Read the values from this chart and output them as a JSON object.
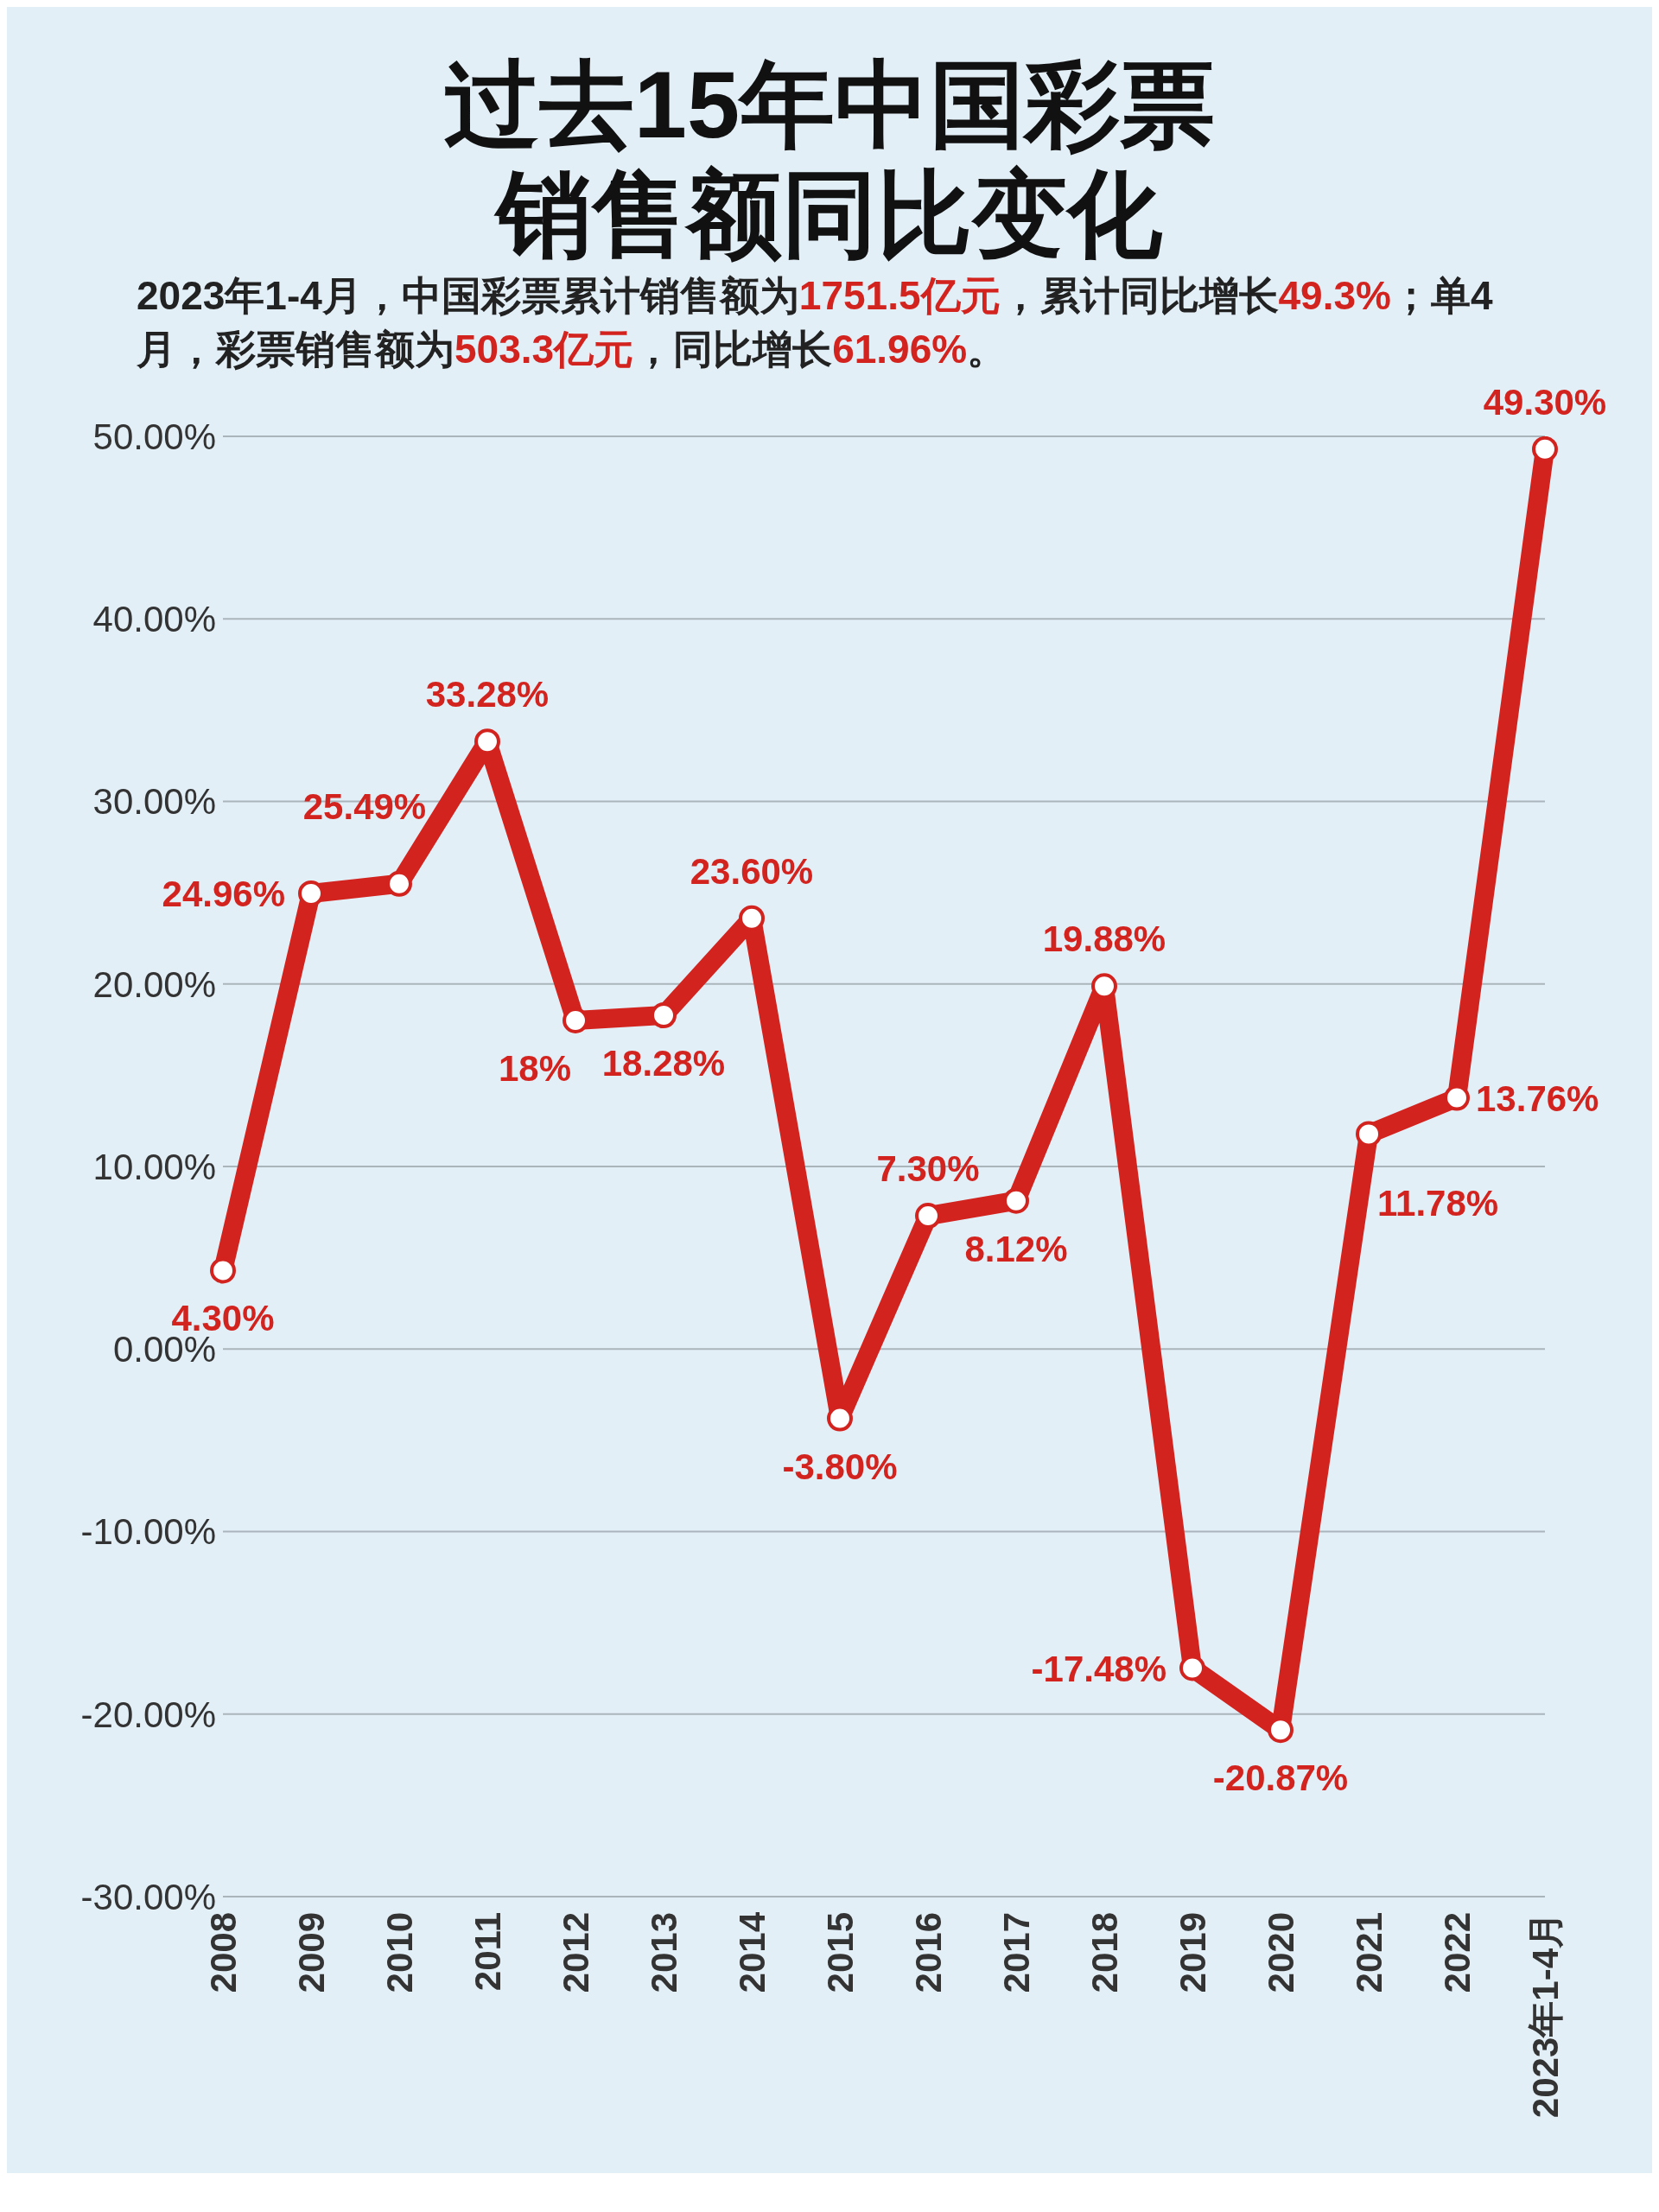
{
  "chart_data": {
    "type": "line",
    "title": "过去15年中国彩票销售额同比变化",
    "subtitle": "2023年1-4月，中国彩票累计销售额为1751.5亿元，累计同比增长49.3%；单4月，彩票销售额为503.3亿元，同比增长61.96%。",
    "categories": [
      "2008",
      "2009",
      "2010",
      "2011",
      "2012",
      "2013",
      "2014",
      "2015",
      "2016",
      "2017",
      "2018",
      "2019",
      "2020",
      "2021",
      "2022",
      "2023年1-4月"
    ],
    "series": [
      {
        "color": "#d3231f",
        "values": [
          4.3,
          24.96,
          25.49,
          33.28,
          18,
          18.28,
          23.6,
          -3.8,
          7.3,
          8.12,
          19.88,
          -17.48,
          -20.87,
          11.78,
          13.76,
          49.3
        ],
        "value_labels": [
          "4.30%",
          "24.96%",
          "25.49%",
          "33.28%",
          "18%",
          "18.28%",
          "23.60%",
          "-3.80%",
          "7.30%",
          "8.12%",
          "19.88%",
          "-17.48%",
          "-20.87%",
          "11.78%",
          "13.76%",
          "49.30%"
        ]
      }
    ],
    "ylim": [
      -30,
      50
    ],
    "yticks": [
      {
        "value": -30,
        "label": "-30.00%"
      },
      {
        "value": -20,
        "label": "-20.00%"
      },
      {
        "value": -10,
        "label": "-10.00%"
      },
      {
        "value": 0,
        "label": "0.00%"
      },
      {
        "value": 10,
        "label": "10.00%"
      },
      {
        "value": 20,
        "label": "20.00%"
      },
      {
        "value": 30,
        "label": "30.00%"
      },
      {
        "value": 40,
        "label": "40.00%"
      },
      {
        "value": 50,
        "label": "50.00%"
      }
    ],
    "grid": "y",
    "marker": "circle",
    "line_style": "solid"
  }
}
